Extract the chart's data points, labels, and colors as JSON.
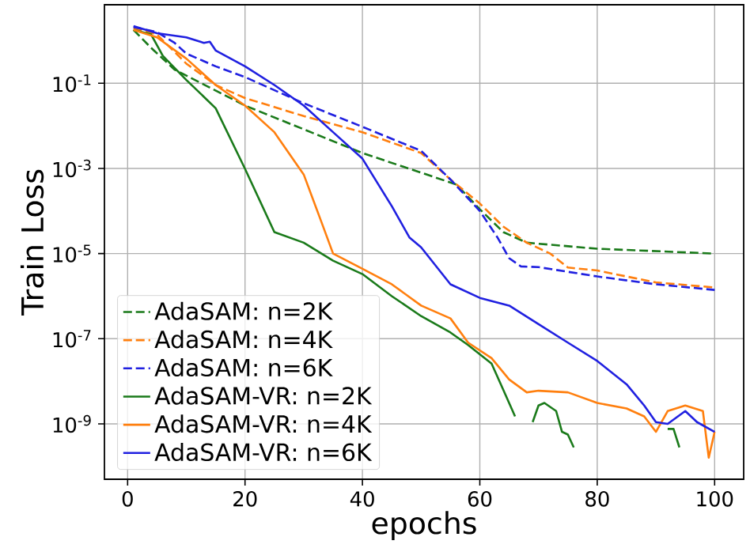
{
  "chart_data": {
    "type": "line",
    "xlabel": "epochs",
    "ylabel": "Train Loss",
    "log": "y",
    "grid": true,
    "legend": "bottom left",
    "xlim": [
      -3.95,
      104.95
    ],
    "xticks": [
      0,
      20,
      40,
      60,
      80,
      100
    ],
    "ylim": [
      5e-11,
      7
    ],
    "yticks": [
      {
        "value": 0.1,
        "label": "10$^{-1}$"
      },
      {
        "value": 0.001,
        "label": "10$^{-3}$"
      },
      {
        "value": 1e-05,
        "label": "10$^{-5}$"
      },
      {
        "value": 1e-07,
        "label": "10$^{-7}$"
      },
      {
        "value": 1e-09,
        "label": "10$^{-9}$"
      }
    ],
    "series": [
      {
        "name": "AdaSAM: n=2K",
        "color": "#1a7a1a",
        "line_style": "dashed",
        "x": [
          1,
          4,
          8,
          20,
          40,
          56,
          60,
          64,
          68,
          80,
          100
        ],
        "values": [
          1.8,
          0.68,
          0.21,
          0.03,
          0.0023,
          0.00042,
          0.00011,
          3.2e-05,
          1.8e-05,
          1.3e-05,
          1e-05
        ]
      },
      {
        "name": "AdaSAM: n=4K",
        "color": "#ff7f0e",
        "line_style": "dashed",
        "x": [
          1,
          5,
          10,
          15,
          20,
          30,
          40,
          50,
          55,
          60,
          64,
          68,
          72,
          75,
          80,
          90,
          100
        ],
        "values": [
          2.0,
          1.4,
          0.29,
          0.091,
          0.045,
          0.017,
          0.0071,
          0.0023,
          0.00055,
          0.00015,
          4.3e-05,
          1.8e-05,
          1e-05,
          4.7e-06,
          4e-06,
          2.1e-06,
          1.6e-06
        ]
      },
      {
        "name": "AdaSAM: n=6K",
        "color": "#2020e0",
        "line_style": "dashed",
        "x": [
          1,
          5,
          8,
          10,
          15,
          20,
          30,
          40,
          50,
          55,
          60,
          63,
          65,
          67,
          70,
          80,
          90,
          100
        ],
        "values": [
          2.1,
          1.6,
          0.89,
          0.5,
          0.25,
          0.14,
          0.034,
          0.0095,
          0.0026,
          0.00055,
          0.0001,
          2.4e-05,
          7.8e-06,
          5e-06,
          4.8e-06,
          2.9e-06,
          1.9e-06,
          1.4e-06
        ]
      },
      {
        "name": "AdaSAM-VR: n=2K",
        "color": "#1a7a1a",
        "line_style": "solid",
        "x": [
          1,
          4,
          6,
          10,
          15,
          20,
          25,
          30,
          35,
          40,
          45,
          50,
          55,
          58,
          62,
          64,
          66,
          67,
          69,
          70,
          71,
          73,
          74,
          75,
          76,
          77,
          92,
          93,
          94
        ],
        "values": [
          1.8,
          1.4,
          0.44,
          0.12,
          0.026,
          0.00098,
          3.2e-05,
          1.8e-05,
          6.8e-06,
          3.3e-06,
          1e-06,
          3.4e-07,
          1.4e-07,
          7.1e-08,
          2.6e-08,
          6.3e-09,
          1.5e-09,
          null,
          1.1e-09,
          2.7e-09,
          3.1e-09,
          2e-09,
          6.5e-10,
          5.6e-10,
          2.8e-10,
          null,
          7.6e-10,
          7.6e-10,
          2.8e-10
        ]
      },
      {
        "name": "AdaSAM-VR: n=4K",
        "color": "#ff7f0e",
        "line_style": "solid",
        "x": [
          1,
          5,
          10,
          15,
          20,
          25,
          30,
          33,
          35,
          40,
          45,
          50,
          55,
          58,
          62,
          65,
          68,
          70,
          75,
          80,
          85,
          88,
          90,
          92,
          95,
          98,
          99,
          100
        ],
        "values": [
          1.8,
          1.2,
          0.38,
          0.091,
          0.03,
          0.0071,
          0.00072,
          5.6e-05,
          1e-05,
          4.4e-06,
          1.9e-06,
          6e-07,
          3e-07,
          8.1e-08,
          3.5e-08,
          1.1e-08,
          5.5e-09,
          6e-09,
          5.5e-09,
          3.1e-09,
          2.3e-09,
          1.5e-09,
          6.5e-10,
          2e-09,
          2.7e-09,
          2e-09,
          1.6e-10,
          6.5e-10
        ]
      },
      {
        "name": "AdaSAM-VR: n=6K",
        "color": "#2020e0",
        "line_style": "solid",
        "x": [
          1,
          5,
          10,
          13,
          14,
          15,
          20,
          25,
          30,
          35,
          40,
          45,
          48,
          50,
          55,
          60,
          65,
          70,
          75,
          80,
          85,
          88,
          90,
          92,
          95,
          97,
          100
        ],
        "values": [
          2.2,
          1.5,
          1.2,
          0.89,
          0.95,
          0.59,
          0.25,
          0.091,
          0.03,
          0.0071,
          0.0017,
          0.00013,
          2.4e-05,
          1.4e-05,
          1.9e-06,
          9.1e-07,
          6e-07,
          2.2e-07,
          8.1e-08,
          3e-08,
          8.5e-09,
          2.7e-09,
          1.1e-09,
          1e-09,
          2e-09,
          1.1e-09,
          6.5e-10
        ]
      }
    ]
  }
}
